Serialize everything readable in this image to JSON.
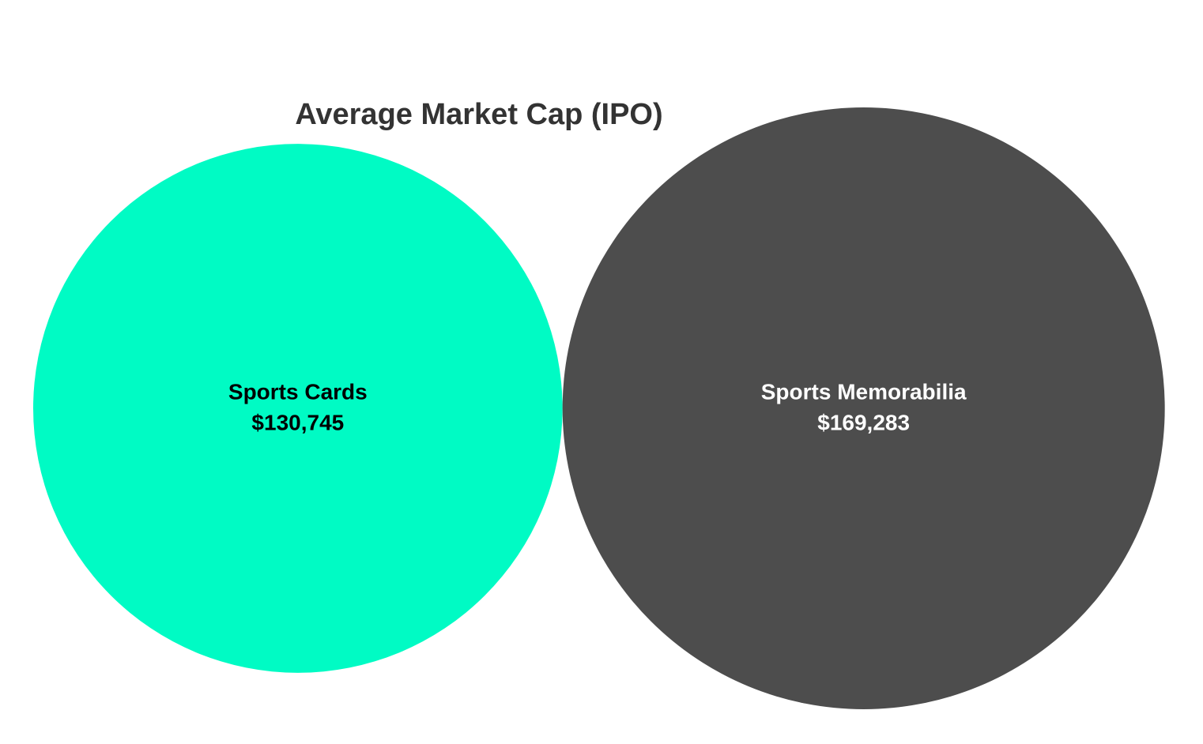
{
  "chart_data": {
    "type": "bubble",
    "title": "Average Market Cap (IPO)",
    "categories": [
      "Sports Cards",
      "Sports Memorabilia"
    ],
    "values": [
      130745,
      169283
    ],
    "value_labels": [
      "$130,745",
      "$169,283"
    ],
    "colors": [
      "#00fbc4",
      "#4d4d4d"
    ],
    "label_colors": [
      "#000000",
      "#ffffff"
    ]
  }
}
